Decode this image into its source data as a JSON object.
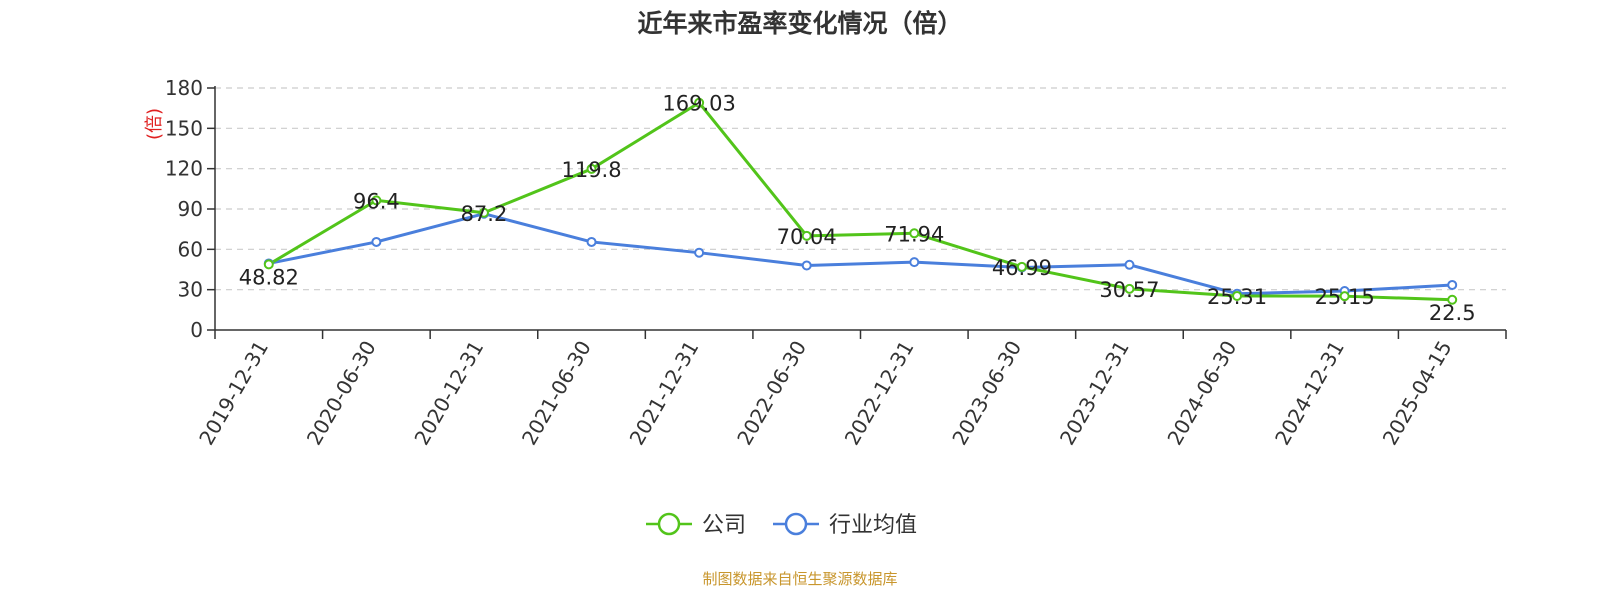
{
  "chart_data": {
    "type": "line",
    "title": "近年来市盈率变化情况（倍）",
    "ylabel": "(倍)",
    "xlabel": "",
    "ylim": [
      0,
      180
    ],
    "yticks": [
      0,
      30,
      60,
      90,
      120,
      150,
      180
    ],
    "grid": true,
    "legend_position": "bottom-center",
    "categories": [
      "2019-12-31",
      "2020-06-30",
      "2020-12-31",
      "2021-06-30",
      "2021-12-31",
      "2022-06-30",
      "2022-12-31",
      "2023-06-30",
      "2023-12-31",
      "2024-06-30",
      "2024-12-31",
      "2025-04-15"
    ],
    "series": [
      {
        "name": "公司",
        "color": "#52c41a",
        "values": [
          48.82,
          96.4,
          87.2,
          119.8,
          169.03,
          70.04,
          71.94,
          46.99,
          30.57,
          25.31,
          25.15,
          22.5
        ],
        "labels": [
          "48.82",
          "96.4",
          "87.2",
          "119.8",
          "169.03",
          "70.04",
          "71.94",
          "46.99",
          "30.57",
          "25.31",
          "25.15",
          "22.5"
        ]
      },
      {
        "name": "行业均值",
        "color": "#4a7fdc",
        "values": [
          49.5,
          65.5,
          86.5,
          65.5,
          57.5,
          48.0,
          50.5,
          46.5,
          48.5,
          27.0,
          29.0,
          33.5
        ]
      }
    ],
    "ylabel_color": "#e02020",
    "source_color": "#c8962d"
  },
  "footer": {
    "source": "制图数据来自恒生聚源数据库"
  }
}
